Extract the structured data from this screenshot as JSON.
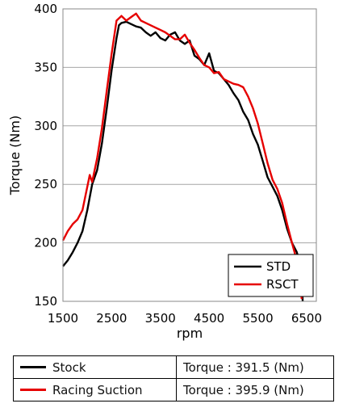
{
  "chart_data": {
    "type": "line",
    "title": "",
    "xlabel": "rpm",
    "ylabel": "Torque (Nm)",
    "xlim": [
      1500,
      6700
    ],
    "ylim": [
      150,
      400
    ],
    "xticks": [
      1500,
      2500,
      3500,
      4500,
      5500,
      6500
    ],
    "yticks": [
      150,
      200,
      250,
      300,
      350,
      400
    ],
    "grid": "horizontal",
    "legend_position": "bottom-right",
    "series": [
      {
        "name": "STD",
        "color": "#000000",
        "x": [
          1500,
          1600,
          1700,
          1800,
          1900,
          2000,
          2100,
          2200,
          2300,
          2400,
          2500,
          2600,
          2650,
          2700,
          2800,
          2900,
          3000,
          3100,
          3200,
          3300,
          3400,
          3500,
          3600,
          3700,
          3800,
          3900,
          4000,
          4100,
          4200,
          4300,
          4400,
          4500,
          4600,
          4700,
          4800,
          4900,
          5000,
          5100,
          5200,
          5300,
          5400,
          5500,
          5600,
          5700,
          5800,
          5900,
          6000,
          6100,
          6200,
          6300,
          6350,
          6400,
          6420
        ],
        "values": [
          180,
          185,
          192,
          200,
          210,
          228,
          250,
          262,
          285,
          315,
          348,
          375,
          386,
          388,
          389,
          387,
          385,
          384,
          380,
          377,
          380,
          375,
          373,
          378,
          380,
          373,
          370,
          373,
          360,
          357,
          352,
          362,
          347,
          345,
          340,
          335,
          328,
          322,
          312,
          305,
          293,
          284,
          270,
          256,
          248,
          240,
          228,
          212,
          200,
          192,
          184,
          170,
          150
        ]
      },
      {
        "name": "RSCT",
        "color": "#e60000",
        "x": [
          1500,
          1600,
          1700,
          1800,
          1900,
          2000,
          2050,
          2100,
          2200,
          2300,
          2400,
          2500,
          2600,
          2700,
          2750,
          2800,
          2900,
          3000,
          3100,
          3200,
          3300,
          3400,
          3500,
          3600,
          3700,
          3800,
          3900,
          4000,
          4100,
          4200,
          4300,
          4400,
          4500,
          4600,
          4700,
          4800,
          4900,
          5000,
          5100,
          5200,
          5300,
          5400,
          5500,
          5600,
          5700,
          5800,
          5900,
          6000,
          6100,
          6200,
          6300,
          6350,
          6400
        ],
        "values": [
          202,
          210,
          216,
          220,
          228,
          248,
          258,
          252,
          272,
          298,
          330,
          362,
          390,
          394,
          392,
          390,
          393,
          396,
          390,
          388,
          386,
          384,
          382,
          380,
          377,
          374,
          374,
          378,
          371,
          365,
          358,
          352,
          350,
          345,
          346,
          340,
          338,
          336,
          335,
          333,
          325,
          315,
          302,
          285,
          268,
          254,
          246,
          234,
          216,
          200,
          185,
          170,
          152
        ]
      }
    ]
  },
  "legend": {
    "items": [
      {
        "label": "STD"
      },
      {
        "label": "RSCT"
      }
    ]
  },
  "summary_table": {
    "rows": [
      {
        "series": "Stock",
        "torque": "Torque : 391.5 (Nm)",
        "color": "#000000"
      },
      {
        "series": "Racing Suction",
        "torque": "Torque : 395.9 (Nm)",
        "color": "#e60000"
      }
    ]
  }
}
